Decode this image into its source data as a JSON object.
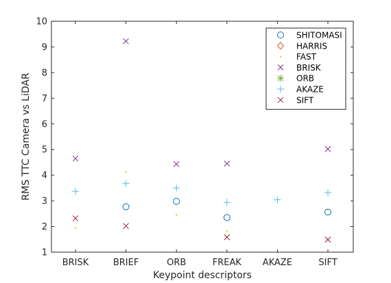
{
  "chart_data": {
    "type": "scatter",
    "xlabel": "Keypoint descriptors",
    "ylabel": "RMS TTC Camera vs LiDAR",
    "categories": [
      "BRISK",
      "BRIEF",
      "ORB",
      "FREAK",
      "AKAZE",
      "SIFT"
    ],
    "ylim": [
      1,
      10
    ],
    "yticks": [
      1,
      2,
      3,
      4,
      5,
      6,
      7,
      8,
      9,
      10
    ],
    "grid": false,
    "legend_position": "top-right",
    "series": [
      {
        "name": "SHITOMASI",
        "marker": "circle",
        "color": "#0072BD",
        "values": [
          null,
          2.77,
          2.98,
          2.35,
          null,
          2.56
        ]
      },
      {
        "name": "HARRIS",
        "marker": "diamond",
        "color": "#D95319",
        "values": [
          null,
          null,
          null,
          null,
          null,
          null
        ]
      },
      {
        "name": "FAST",
        "marker": "point",
        "color": "#EDB120",
        "values": [
          1.95,
          4.12,
          2.45,
          1.82,
          null,
          2.65
        ]
      },
      {
        "name": "BRISK",
        "marker": "x",
        "color": "#7E2F8E",
        "values": [
          4.65,
          9.22,
          4.43,
          4.45,
          null,
          5.02
        ]
      },
      {
        "name": "ORB",
        "marker": "asterisk",
        "color": "#77AC30",
        "values": [
          null,
          null,
          null,
          null,
          null,
          null
        ]
      },
      {
        "name": "AKAZE",
        "marker": "plus",
        "color": "#4DBEEE",
        "values": [
          3.37,
          3.68,
          3.5,
          2.94,
          3.04,
          3.32
        ]
      },
      {
        "name": "SIFT",
        "marker": "x",
        "color": "#A2142F",
        "values": [
          2.32,
          2.02,
          null,
          1.58,
          null,
          1.49
        ]
      }
    ]
  }
}
